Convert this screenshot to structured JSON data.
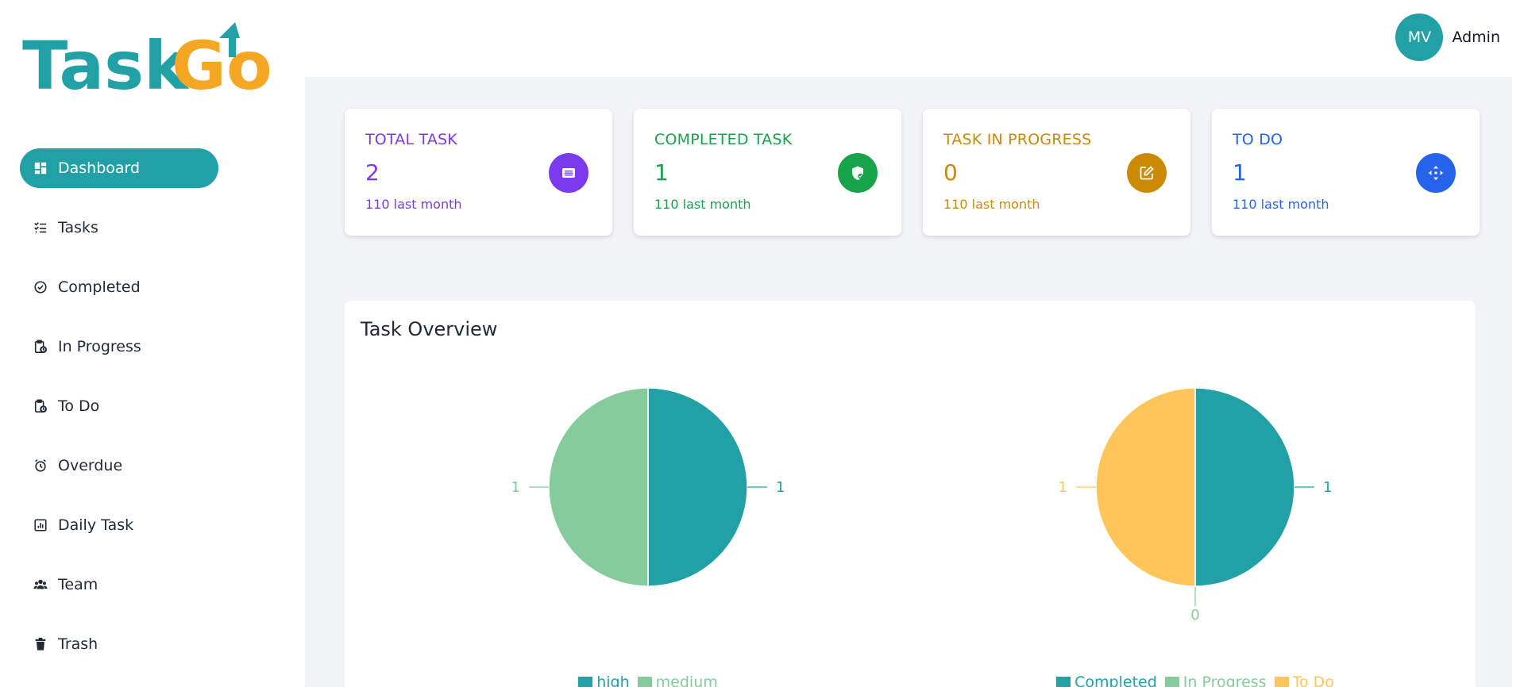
{
  "app": {
    "logo_part1": "Task",
    "logo_part2": "Go",
    "brand_teal": "#21a0a6",
    "brand_orange": "#f5a623"
  },
  "sidebar": {
    "items": [
      {
        "label": "Dashboard",
        "icon": "dashboard-icon",
        "active": true
      },
      {
        "label": "Tasks",
        "icon": "tasks-list-icon",
        "active": false
      },
      {
        "label": "Completed",
        "icon": "check-circle-icon",
        "active": false
      },
      {
        "label": "In Progress",
        "icon": "clipboard-clock-icon",
        "active": false
      },
      {
        "label": "To Do",
        "icon": "clipboard-clock-icon",
        "active": false
      },
      {
        "label": "Overdue",
        "icon": "alarm-clock-icon",
        "active": false
      },
      {
        "label": "Daily Task",
        "icon": "bar-chart-icon",
        "active": false
      },
      {
        "label": "Team",
        "icon": "users-icon",
        "active": false
      },
      {
        "label": "Trash",
        "icon": "trash-icon",
        "active": false
      }
    ]
  },
  "header": {
    "avatar_initials": "MV",
    "username": "Admin"
  },
  "cards": [
    {
      "title": "TOTAL TASK",
      "value": "2",
      "sub": "110 last month",
      "color": "#7c3aed",
      "icon": "list-card-icon"
    },
    {
      "title": "COMPLETED TASK",
      "value": "1",
      "sub": "110 last month",
      "color": "#16a34a",
      "icon": "shield-check-icon"
    },
    {
      "title": "TASK IN PROGRESS",
      "value": "0",
      "sub": "110 last month",
      "color": "#ca8a04",
      "icon": "edit-icon"
    },
    {
      "title": "TO DO",
      "value": "1",
      "sub": "110 last month",
      "color": "#2563eb",
      "icon": "move-arrows-icon"
    }
  ],
  "overview": {
    "title": "Task Overview"
  },
  "chart_data": [
    {
      "type": "pie",
      "categories": [
        "high",
        "medium"
      ],
      "values": [
        1,
        1
      ],
      "colors": [
        "#21a0a6",
        "#86cb9c"
      ],
      "labels": [
        "1",
        "1"
      ],
      "legend": "bottom"
    },
    {
      "type": "pie",
      "categories": [
        "Completed",
        "In Progress",
        "To Do"
      ],
      "values": [
        1,
        0,
        1
      ],
      "colors": [
        "#21a0a6",
        "#86cb9c",
        "#fec65a"
      ],
      "labels": [
        "1",
        "0",
        "1"
      ],
      "legend": "bottom"
    }
  ]
}
